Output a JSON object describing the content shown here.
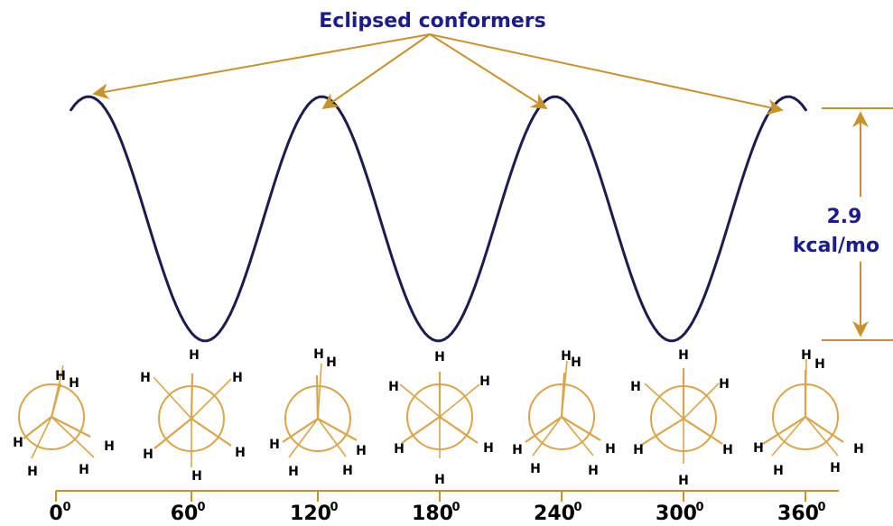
{
  "title": "Eclipsed conformers",
  "energy": {
    "value": "2.9",
    "unit": "kcal/mo"
  },
  "hydrogen_label": "H",
  "degree_mark": "0",
  "angles": [
    "0",
    "60",
    "120",
    "180",
    "240",
    "300",
    "360"
  ],
  "colors": {
    "curve": "#1c1c4e",
    "arrow": "#c8922a",
    "title": "#1c1c8c",
    "energy": "#1c1c8c",
    "newman": "#d9a548",
    "axis": "#c8922a"
  }
}
